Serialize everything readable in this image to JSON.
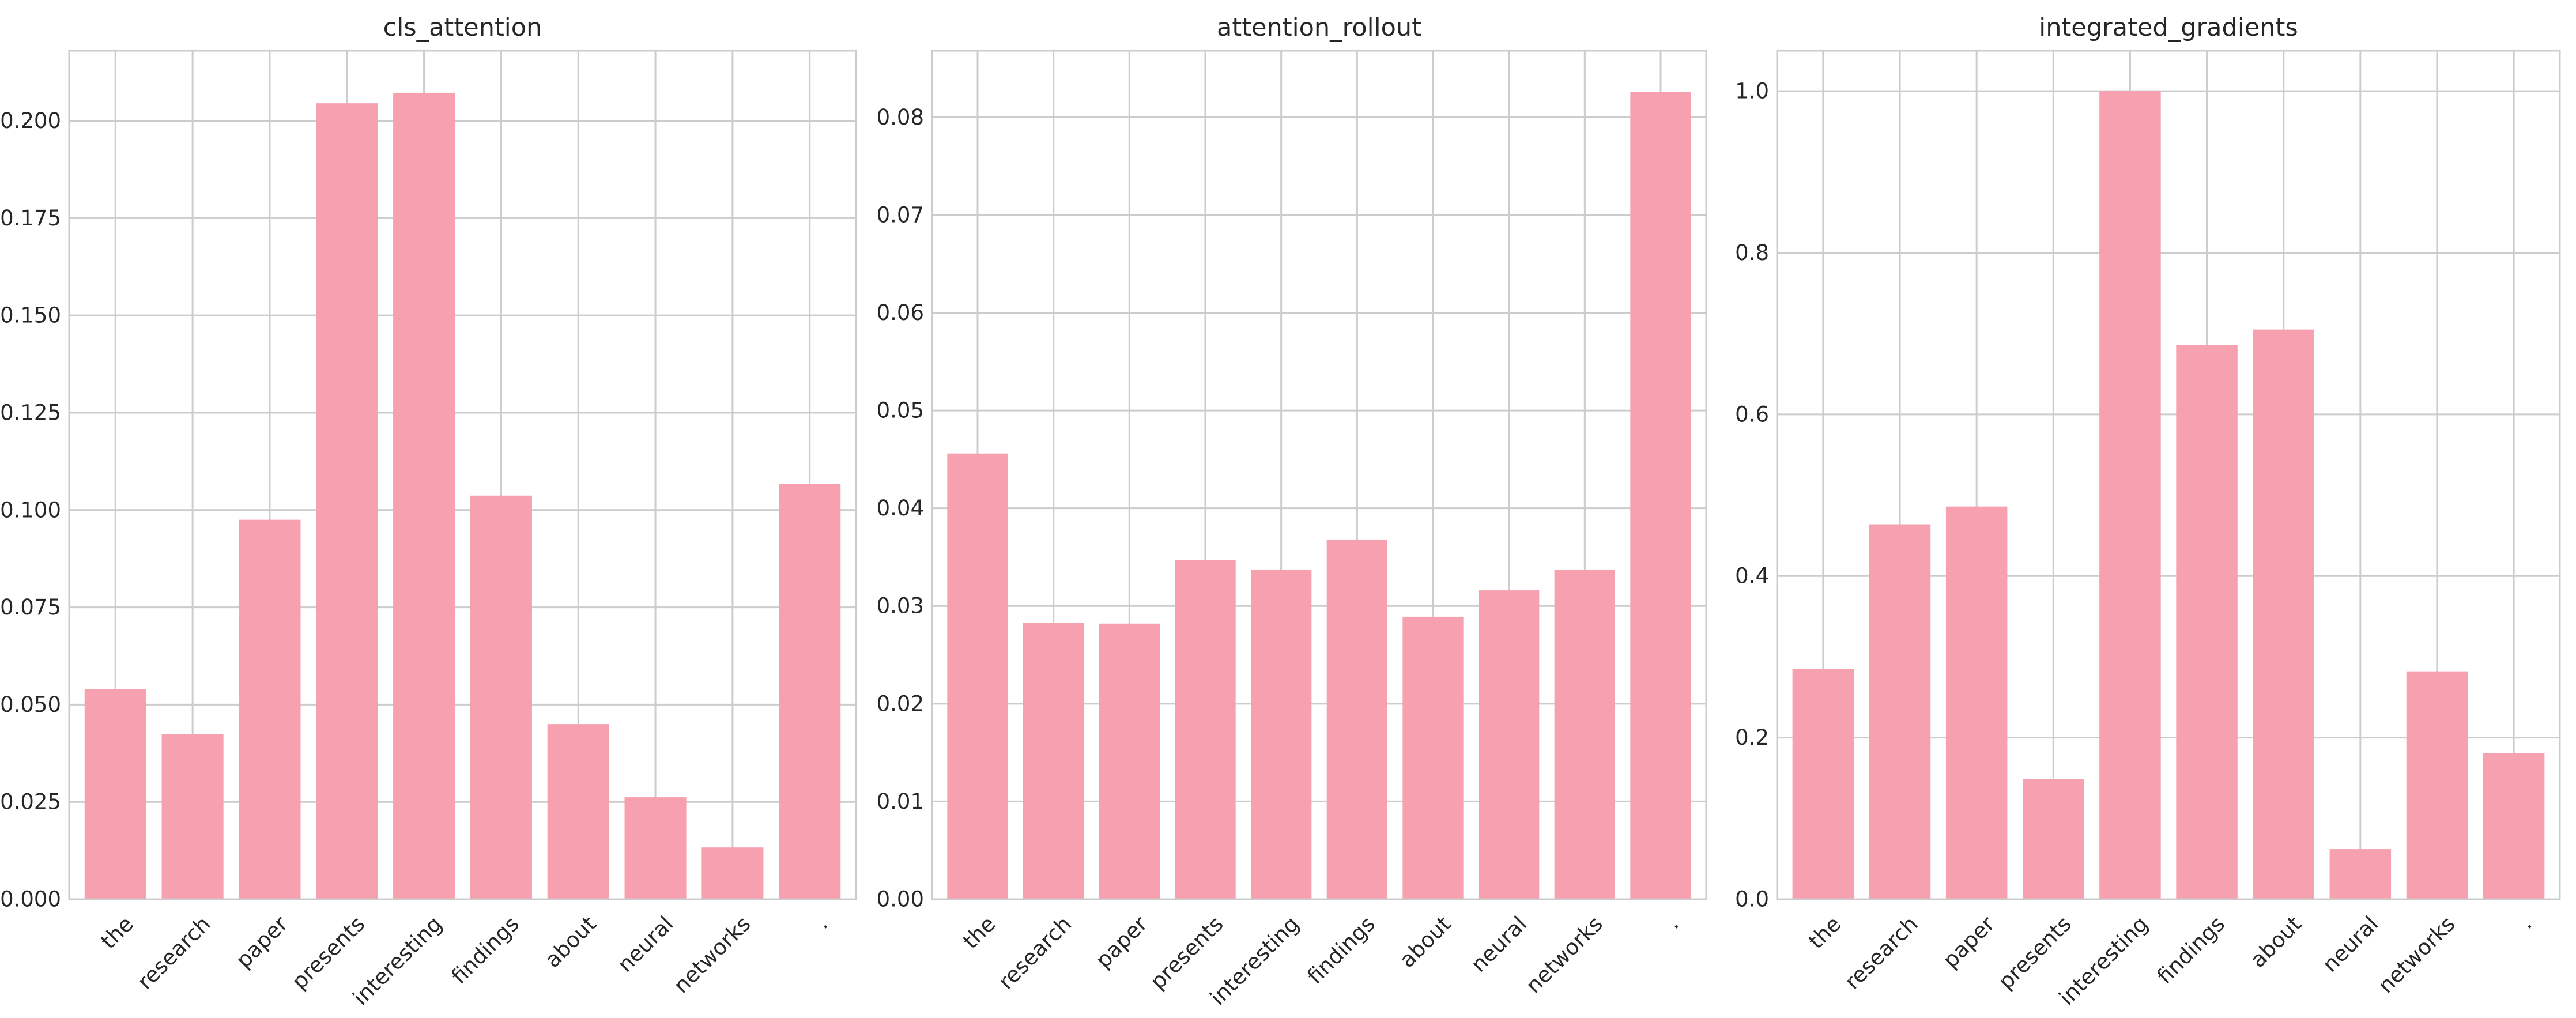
{
  "chart_data": [
    {
      "type": "bar",
      "title": "cls_attention",
      "xlabel": "",
      "ylabel": "",
      "categories": [
        "the",
        "research",
        "paper",
        "presents",
        "interesting",
        "findings",
        "about",
        "neural",
        "networks",
        "."
      ],
      "values": [
        0.054,
        0.0425,
        0.0975,
        0.2045,
        0.2072,
        0.1037,
        0.045,
        0.0262,
        0.0133,
        0.1067
      ],
      "ylim": [
        0,
        0.218
      ],
      "yticks": [
        0.0,
        0.025,
        0.05,
        0.075,
        0.1,
        0.125,
        0.15,
        0.175,
        0.2
      ],
      "ytick_labels": [
        "0.000",
        "0.025",
        "0.050",
        "0.075",
        "0.100",
        "0.125",
        "0.150",
        "0.175",
        "0.200"
      ],
      "grid": true,
      "color": "#f7a0b0"
    },
    {
      "type": "bar",
      "title": "attention_rollout",
      "xlabel": "",
      "ylabel": "",
      "categories": [
        "the",
        "research",
        "paper",
        "presents",
        "interesting",
        "findings",
        "about",
        "neural",
        "networks",
        "."
      ],
      "values": [
        0.0456,
        0.0283,
        0.0282,
        0.0347,
        0.0337,
        0.0368,
        0.0289,
        0.0316,
        0.0337,
        0.0826
      ],
      "ylim": [
        0,
        0.0868
      ],
      "yticks": [
        0.0,
        0.01,
        0.02,
        0.03,
        0.04,
        0.05,
        0.06,
        0.07,
        0.08
      ],
      "ytick_labels": [
        "0.00",
        "0.01",
        "0.02",
        "0.03",
        "0.04",
        "0.05",
        "0.06",
        "0.07",
        "0.08"
      ],
      "grid": true,
      "color": "#f7a0b0"
    },
    {
      "type": "bar",
      "title": "integrated_gradients",
      "xlabel": "",
      "ylabel": "",
      "categories": [
        "the",
        "research",
        "paper",
        "presents",
        "interesting",
        "findings",
        "about",
        "neural",
        "networks",
        "."
      ],
      "values": [
        0.285,
        0.464,
        0.486,
        0.149,
        1.0,
        0.686,
        0.705,
        0.062,
        0.282,
        0.181
      ],
      "ylim": [
        0,
        1.05
      ],
      "yticks": [
        0.0,
        0.2,
        0.4,
        0.6,
        0.8,
        1.0
      ],
      "ytick_labels": [
        "0.0",
        "0.2",
        "0.4",
        "0.6",
        "0.8",
        "1.0"
      ],
      "grid": true,
      "color": "#f7a0b0"
    }
  ]
}
